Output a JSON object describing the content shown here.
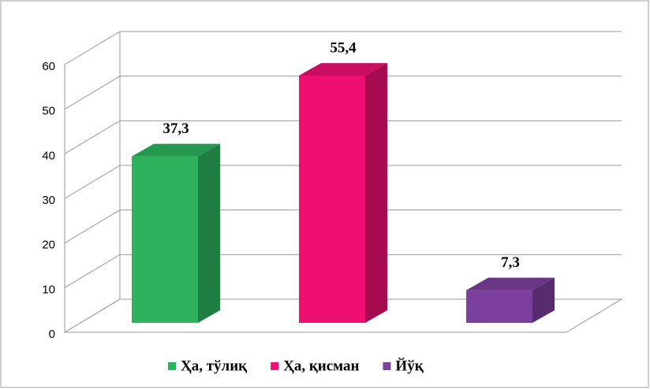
{
  "chart_data": {
    "type": "bar3d",
    "categories": [
      null
    ],
    "series": [
      {
        "name": "Ҳа, тўлиқ",
        "color": "#2db35d",
        "values": [
          37.3
        ],
        "value_labels": [
          "37,3"
        ]
      },
      {
        "name": "Ҳа, қисман",
        "color": "#ed0f72",
        "values": [
          55.4
        ],
        "value_labels": [
          "55,4"
        ]
      },
      {
        "name": "Йўқ",
        "color": "#7b3f9e",
        "values": [
          7.3
        ],
        "value_labels": [
          "7,3"
        ]
      }
    ],
    "ylim": [
      0,
      60
    ],
    "yticks": [
      0,
      10,
      20,
      30,
      40,
      50,
      60
    ],
    "grid": true,
    "legend": "bottom"
  }
}
